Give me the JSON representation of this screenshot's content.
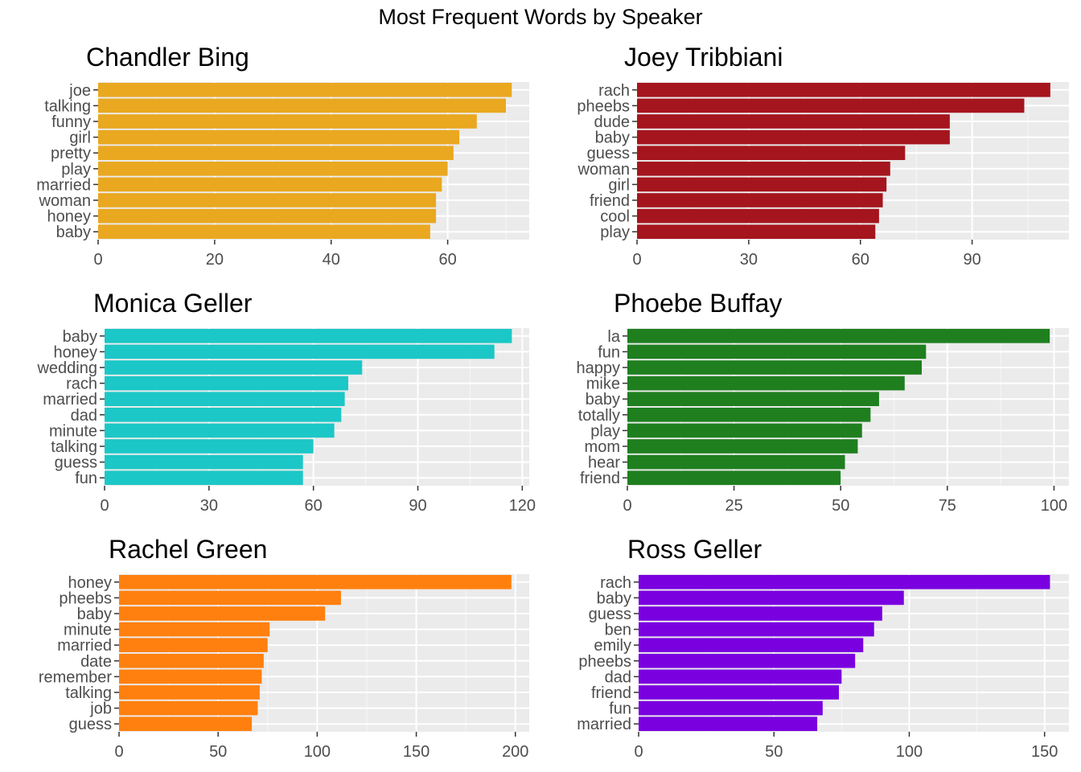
{
  "figure": {
    "title": "Most Frequent Words by Speaker"
  },
  "chart_data": [
    {
      "type": "bar",
      "orientation": "horizontal",
      "title": "Chandler Bing",
      "color": "#E9A820",
      "categories": [
        "joe",
        "talking",
        "funny",
        "girl",
        "pretty",
        "play",
        "married",
        "woman",
        "honey",
        "baby"
      ],
      "values": [
        71,
        70,
        65,
        62,
        61,
        60,
        59,
        58,
        58,
        57
      ],
      "xlim": [
        0,
        74
      ],
      "ticks": [
        0,
        20,
        40,
        60
      ],
      "xlabel": "",
      "ylabel": "",
      "grid": true,
      "legend": "none"
    },
    {
      "type": "bar",
      "orientation": "horizontal",
      "title": "Joey Tribbiani",
      "color": "#A5151D",
      "categories": [
        "rach",
        "pheebs",
        "dude",
        "baby",
        "guess",
        "woman",
        "girl",
        "friend",
        "cool",
        "play"
      ],
      "values": [
        111,
        104,
        84,
        84,
        72,
        68,
        67,
        66,
        65,
        64
      ],
      "xlim": [
        0,
        116
      ],
      "ticks": [
        0,
        30,
        60,
        90
      ],
      "xlabel": "",
      "ylabel": "",
      "grid": true,
      "legend": "none"
    },
    {
      "type": "bar",
      "orientation": "horizontal",
      "title": "Monica Geller",
      "color": "#1CC7C7",
      "categories": [
        "baby",
        "honey",
        "wedding",
        "rach",
        "married",
        "dad",
        "minute",
        "talking",
        "guess",
        "fun"
      ],
      "values": [
        117,
        112,
        74,
        70,
        69,
        68,
        66,
        60,
        57,
        57
      ],
      "xlim": [
        0,
        122
      ],
      "ticks": [
        0,
        30,
        60,
        90,
        120
      ],
      "xlabel": "",
      "ylabel": "",
      "grid": true,
      "legend": "none"
    },
    {
      "type": "bar",
      "orientation": "horizontal",
      "title": "Phoebe Buffay",
      "color": "#1F7F1F",
      "categories": [
        "la",
        "fun",
        "happy",
        "mike",
        "baby",
        "totally",
        "play",
        "mom",
        "hear",
        "friend"
      ],
      "values": [
        99,
        70,
        69,
        65,
        59,
        57,
        55,
        54,
        51,
        50
      ],
      "xlim": [
        0,
        103.5
      ],
      "ticks": [
        0,
        25,
        50,
        75,
        100
      ],
      "xlabel": "",
      "ylabel": "",
      "grid": true,
      "legend": "none"
    },
    {
      "type": "bar",
      "orientation": "horizontal",
      "title": "Rachel Green",
      "color": "#FF800E",
      "categories": [
        "honey",
        "pheebs",
        "baby",
        "minute",
        "married",
        "date",
        "remember",
        "talking",
        "job",
        "guess"
      ],
      "values": [
        198,
        112,
        104,
        76,
        75,
        73,
        72,
        71,
        70,
        67
      ],
      "xlim": [
        0,
        207
      ],
      "ticks": [
        0,
        50,
        100,
        150,
        200
      ],
      "xlabel": "",
      "ylabel": "",
      "grid": true,
      "legend": "none"
    },
    {
      "type": "bar",
      "orientation": "horizontal",
      "title": "Ross Geller",
      "color": "#7A00E0",
      "categories": [
        "rach",
        "baby",
        "guess",
        "ben",
        "emily",
        "pheebs",
        "dad",
        "friend",
        "fun",
        "married"
      ],
      "values": [
        152,
        98,
        90,
        87,
        83,
        80,
        75,
        74,
        68,
        66
      ],
      "xlim": [
        0,
        159
      ],
      "ticks": [
        0,
        50,
        100,
        150
      ],
      "xlabel": "",
      "ylabel": "",
      "grid": true,
      "legend": "none"
    }
  ]
}
